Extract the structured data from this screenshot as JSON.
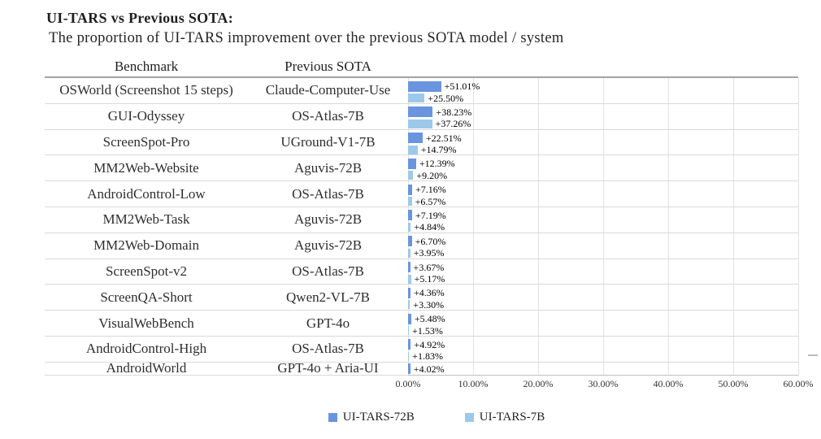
{
  "header": {
    "title": "UI-TARS vs Previous SOTA:",
    "subtitle": "The proportion of UI-TARS improvement over the previous SOTA model / system"
  },
  "table": {
    "benchmark_header": "Benchmark",
    "previous_sota_header": "Previous SOTA"
  },
  "colors": {
    "ui_tars_72b": "#6B94DF",
    "ui_tars_7b": "#9CC9E9"
  },
  "chart_data": {
    "type": "bar",
    "orientation": "horizontal",
    "grid": true,
    "xlim": [
      0,
      60
    ],
    "x_ticks": [
      "0.00%",
      "10.00%",
      "20.00%",
      "30.00%",
      "40.00%",
      "50.00%",
      "60.00%"
    ],
    "legend_position": "bottom-center",
    "series_names": [
      "UI-TARS-72B",
      "UI-TARS-7B"
    ],
    "legend": [
      {
        "name": "UI-TARS-72B",
        "color": "#6B94DF"
      },
      {
        "name": "UI-TARS-7B",
        "color": "#9CC9E9"
      }
    ],
    "rows": [
      {
        "benchmark": "OSWorld (Screenshot 15 steps)",
        "previous_sota": "Claude-Computer-Use",
        "values": [
          51.01,
          25.5
        ],
        "labels": [
          "+51.01%",
          "+25.50%"
        ]
      },
      {
        "benchmark": "GUI-Odyssey",
        "previous_sota": "OS-Atlas-7B",
        "values": [
          38.23,
          37.26
        ],
        "labels": [
          "+38.23%",
          "+37.26%"
        ]
      },
      {
        "benchmark": "ScreenSpot-Pro",
        "previous_sota": "UGround-V1-7B",
        "values": [
          22.51,
          14.79
        ],
        "labels": [
          "+22.51%",
          "+14.79%"
        ]
      },
      {
        "benchmark": "MM2Web-Website",
        "previous_sota": "Aguvis-72B",
        "values": [
          12.39,
          9.2
        ],
        "labels": [
          "+12.39%",
          "+9.20%"
        ]
      },
      {
        "benchmark": "AndroidControl-Low",
        "previous_sota": "OS-Atlas-7B",
        "values": [
          7.16,
          6.57
        ],
        "labels": [
          "+7.16%",
          "+6.57%"
        ]
      },
      {
        "benchmark": "MM2Web-Task",
        "previous_sota": "Aguvis-72B",
        "values": [
          7.19,
          4.84
        ],
        "labels": [
          "+7.19%",
          "+4.84%"
        ]
      },
      {
        "benchmark": "MM2Web-Domain",
        "previous_sota": "Aguvis-72B",
        "values": [
          6.7,
          3.95
        ],
        "labels": [
          "+6.70%",
          "+3.95%"
        ]
      },
      {
        "benchmark": "ScreenSpot-v2",
        "previous_sota": "OS-Atlas-7B",
        "values": [
          3.67,
          5.17
        ],
        "labels": [
          "+3.67%",
          "+5.17%"
        ]
      },
      {
        "benchmark": "ScreenQA-Short",
        "previous_sota": "Qwen2-VL-7B",
        "values": [
          4.36,
          3.3
        ],
        "labels": [
          "+4.36%",
          "+3.30%"
        ]
      },
      {
        "benchmark": "VisualWebBench",
        "previous_sota": "GPT-4o",
        "values": [
          5.48,
          1.53
        ],
        "labels": [
          "+5.48%",
          "+1.53%"
        ]
      },
      {
        "benchmark": "AndroidControl-High",
        "previous_sota": "OS-Atlas-7B",
        "values": [
          4.92,
          1.83
        ],
        "labels": [
          "+4.92%",
          "+1.83%"
        ]
      },
      {
        "benchmark": "AndroidWorld",
        "previous_sota": "GPT-4o + Aria-UI",
        "values": [
          4.02,
          null
        ],
        "labels": [
          "+4.02%",
          null
        ]
      }
    ]
  }
}
